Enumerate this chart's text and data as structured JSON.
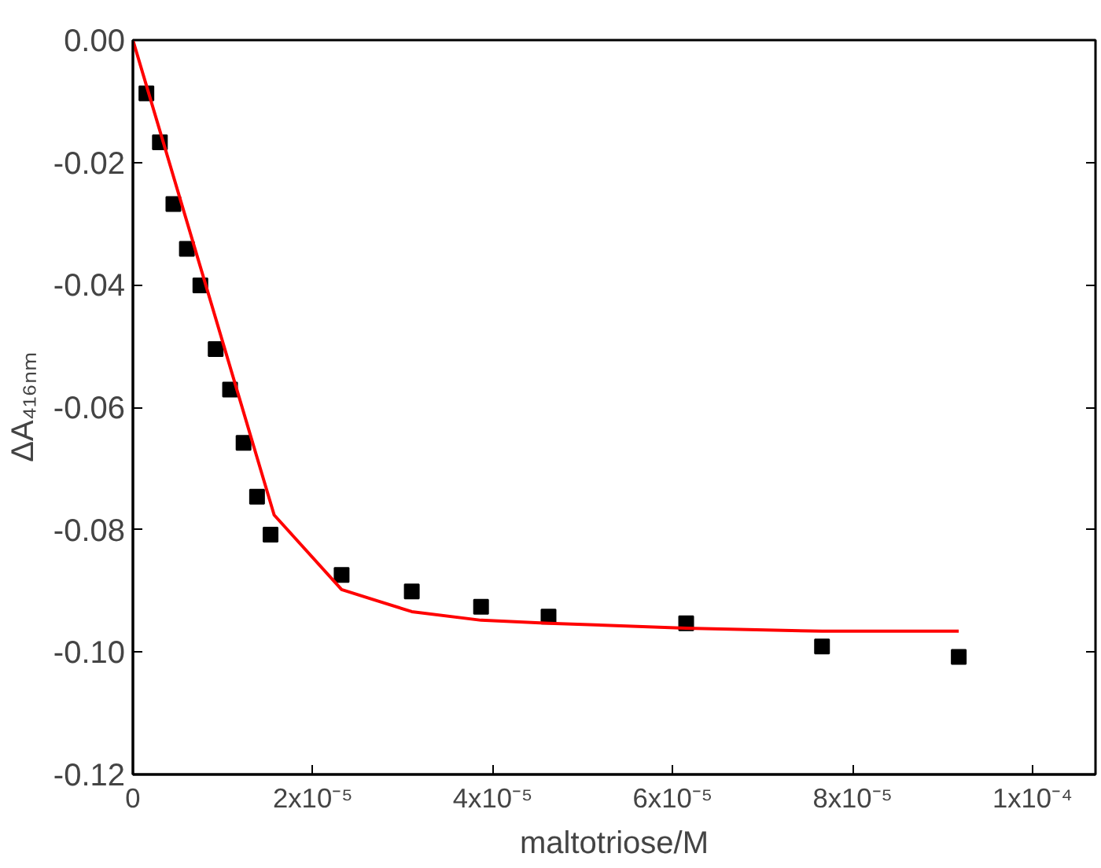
{
  "chart_data": {
    "type": "scatter",
    "xlabel": "maltotriose/M",
    "ylabel": "ΔA₄₁₆ₙₘ",
    "grid": false,
    "xlim": [
      0,
      0.000107
    ],
    "ylim": [
      -0.12,
      0.0
    ],
    "xticks": [
      {
        "value": 0,
        "label": "0"
      },
      {
        "value": 2e-05,
        "label": "2x10⁻⁵"
      },
      {
        "value": 4e-05,
        "label": "4x10⁻⁵"
      },
      {
        "value": 6e-05,
        "label": "6x10⁻⁵"
      },
      {
        "value": 8e-05,
        "label": "8x10⁻⁵"
      },
      {
        "value": 0.0001,
        "label": "1x10⁻⁴"
      }
    ],
    "yticks": [
      {
        "value": 0,
        "label": "0.00"
      },
      {
        "value": -0.02,
        "label": "-0.02"
      },
      {
        "value": -0.04,
        "label": "-0.04"
      },
      {
        "value": -0.06,
        "label": "-0.06"
      },
      {
        "value": -0.08,
        "label": "-0.08"
      },
      {
        "value": -0.1,
        "label": "-0.10"
      },
      {
        "value": -0.12,
        "label": "-0.12"
      }
    ],
    "series": [
      {
        "marker": "square",
        "color": "#000000",
        "x": [
          1.5e-06,
          3e-06,
          4.5e-06,
          6e-06,
          7.5e-06,
          9.2e-06,
          1.08e-05,
          1.23e-05,
          1.38e-05,
          1.53e-05,
          2.32e-05,
          3.1e-05,
          3.87e-05,
          4.62e-05,
          6.15e-05,
          7.66e-05,
          9.18e-05
        ],
        "values": [
          -0.0087,
          -0.0167,
          -0.0268,
          -0.0341,
          -0.0401,
          -0.0505,
          -0.0571,
          -0.0658,
          -0.0746,
          -0.0808,
          -0.0874,
          -0.0901,
          -0.0926,
          -0.0942,
          -0.0953,
          -0.0991,
          -0.1008
        ]
      },
      {
        "type": "line",
        "marker": "none",
        "color": "#ff0000",
        "x": [
          0,
          1.57e-05,
          2.32e-05,
          3.1e-05,
          3.87e-05,
          4.62e-05,
          6.15e-05,
          7.66e-05,
          9.18e-05
        ],
        "values": [
          0,
          -0.0776,
          -0.0898,
          -0.0934,
          -0.0948,
          -0.0953,
          -0.0961,
          -0.0966,
          -0.0966
        ]
      }
    ]
  }
}
